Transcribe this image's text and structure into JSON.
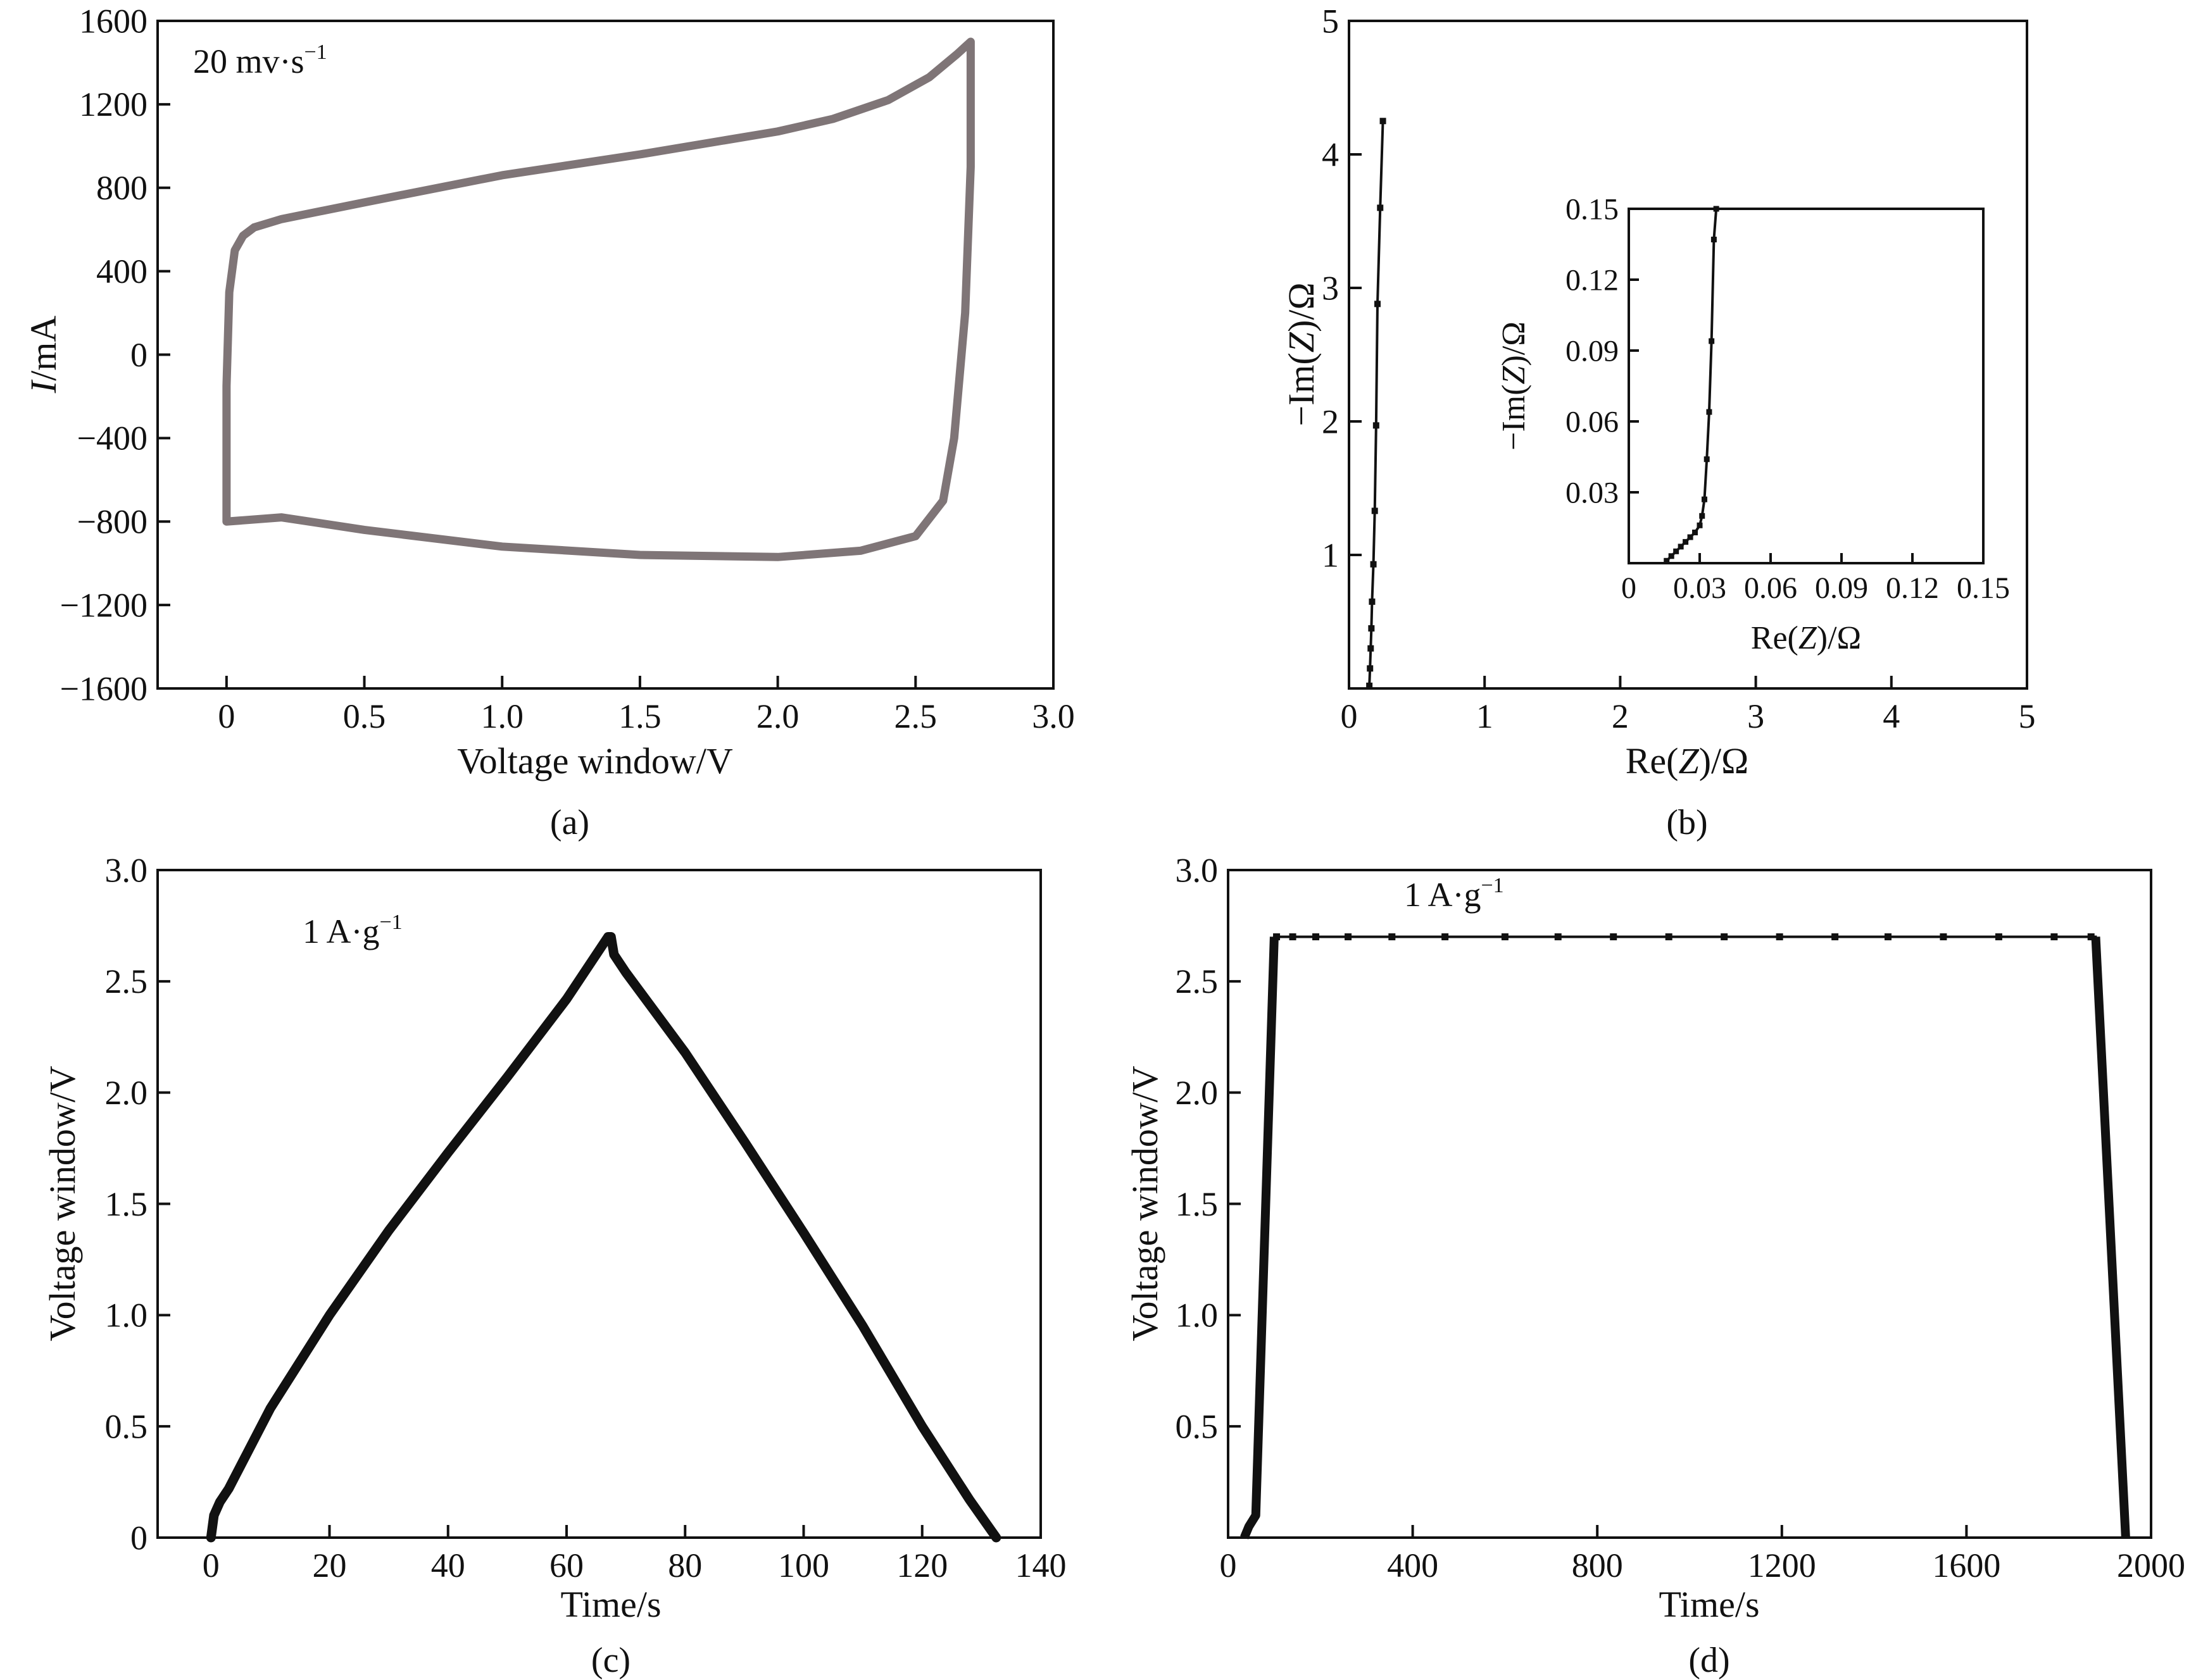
{
  "chart_data": [
    {
      "panel": "(a)",
      "type": "line",
      "annotation": "20 mv·s",
      "annotation_sup": "−1",
      "xlabel": "Voltage window/V",
      "ylabel_italic": "I",
      "ylabel_rest": "/mA",
      "xlim": [
        -0.25,
        3.0
      ],
      "ylim": [
        -1600,
        1600
      ],
      "xticks": [
        {
          "v": 0,
          "t": "0"
        },
        {
          "v": 0.5,
          "t": "0.5"
        },
        {
          "v": 1.0,
          "t": "1.0"
        },
        {
          "v": 1.5,
          "t": "1.5"
        },
        {
          "v": 2.0,
          "t": "2.0"
        },
        {
          "v": 2.5,
          "t": "2.5"
        },
        {
          "v": 3.0,
          "t": "3.0"
        }
      ],
      "yticks": [
        {
          "v": 1600,
          "t": "1600"
        },
        {
          "v": 1200,
          "t": "1200"
        },
        {
          "v": 800,
          "t": "800"
        },
        {
          "v": 400,
          "t": "400"
        },
        {
          "v": 0,
          "t": "0"
        },
        {
          "v": -400,
          "t": "−400"
        },
        {
          "v": -800,
          "t": "−800"
        },
        {
          "v": -1200,
          "t": "−1200"
        },
        {
          "v": -1600,
          "t": "−1600"
        }
      ],
      "series": [
        {
          "x": [
            0.0,
            0.01,
            0.03,
            0.06,
            0.1,
            0.2,
            0.5,
            1.0,
            1.5,
            2.0,
            2.2,
            2.4,
            2.55,
            2.65,
            2.7,
            2.7,
            2.68,
            2.64,
            2.6,
            2.5,
            2.3,
            2.0,
            1.5,
            1.0,
            0.5,
            0.2,
            0.0,
            0.0
          ],
          "y": [
            -150,
            300,
            500,
            570,
            610,
            650,
            730,
            860,
            960,
            1070,
            1130,
            1220,
            1330,
            1440,
            1500,
            900,
            200,
            -400,
            -700,
            -870,
            -940,
            -970,
            -960,
            -920,
            -840,
            -780,
            -800,
            -150
          ]
        }
      ]
    },
    {
      "panel": "(b)",
      "type": "line",
      "xlabel_pre": "Re(",
      "xlabel_z": "Z",
      "xlabel_post": ")/Ω",
      "ylabel_pre": "−Im(",
      "ylabel_z": "Z",
      "ylabel_post": ")/Ω",
      "xlim": [
        0,
        5
      ],
      "ylim": [
        0,
        5
      ],
      "xticks": [
        {
          "v": 0,
          "t": "0"
        },
        {
          "v": 1,
          "t": "1"
        },
        {
          "v": 2,
          "t": "2"
        },
        {
          "v": 3,
          "t": "3"
        },
        {
          "v": 4,
          "t": "4"
        },
        {
          "v": 5,
          "t": "5"
        }
      ],
      "yticks": [
        {
          "v": 1,
          "t": "1"
        },
        {
          "v": 2,
          "t": "2"
        },
        {
          "v": 3,
          "t": "3"
        },
        {
          "v": 4,
          "t": "4"
        },
        {
          "v": 5,
          "t": "5"
        }
      ],
      "series": [
        {
          "x": [
            0.15,
            0.155,
            0.16,
            0.165,
            0.17,
            0.18,
            0.19,
            0.2,
            0.21,
            0.23,
            0.25
          ],
          "y": [
            0.02,
            0.15,
            0.3,
            0.45,
            0.65,
            0.93,
            1.33,
            1.97,
            2.88,
            3.6,
            4.25
          ]
        }
      ],
      "inset": {
        "xlabel_pre": "Re(",
        "xlabel_z": "Z",
        "xlabel_post": ")/Ω",
        "ylabel_pre": "−Im(",
        "ylabel_z": "Z",
        "ylabel_post": ")/Ω",
        "xlim": [
          0,
          0.15
        ],
        "ylim": [
          0,
          0.15
        ],
        "xticks": [
          {
            "v": 0,
            "t": "0"
          },
          {
            "v": 0.03,
            "t": "0.03"
          },
          {
            "v": 0.06,
            "t": "0.06"
          },
          {
            "v": 0.09,
            "t": "0.09"
          },
          {
            "v": 0.12,
            "t": "0.12"
          },
          {
            "v": 0.15,
            "t": "0.15"
          }
        ],
        "yticks": [
          {
            "v": 0.03,
            "t": "0.03"
          },
          {
            "v": 0.06,
            "t": "0.06"
          },
          {
            "v": 0.09,
            "t": "0.09"
          },
          {
            "v": 0.12,
            "t": "0.12"
          },
          {
            "v": 0.15,
            "t": "0.15"
          }
        ],
        "series": [
          {
            "x": [
              0.016,
              0.018,
              0.02,
              0.022,
              0.024,
              0.026,
              0.028,
              0.03,
              0.031,
              0.032,
              0.033,
              0.034,
              0.035,
              0.036,
              0.037
            ],
            "y": [
              0.001,
              0.003,
              0.005,
              0.007,
              0.009,
              0.011,
              0.013,
              0.016,
              0.02,
              0.027,
              0.044,
              0.064,
              0.094,
              0.137,
              0.15
            ]
          }
        ]
      }
    },
    {
      "panel": "(c)",
      "type": "line",
      "annotation": "1 A·g",
      "annotation_sup": "−1",
      "xlabel": "Time/s",
      "ylabel": "Voltage window/V",
      "xlim": [
        -9,
        140
      ],
      "ylim": [
        0,
        3.0
      ],
      "xticks": [
        {
          "v": 0,
          "t": "0"
        },
        {
          "v": 20,
          "t": "20"
        },
        {
          "v": 40,
          "t": "40"
        },
        {
          "v": 60,
          "t": "60"
        },
        {
          "v": 80,
          "t": "80"
        },
        {
          "v": 100,
          "t": "100"
        },
        {
          "v": 120,
          "t": "120"
        },
        {
          "v": 140,
          "t": "140"
        }
      ],
      "yticks": [
        {
          "v": 0,
          "t": "0"
        },
        {
          "v": 0.5,
          "t": "0.5"
        },
        {
          "v": 1.0,
          "t": "1.0"
        },
        {
          "v": 1.5,
          "t": "1.5"
        },
        {
          "v": 2.0,
          "t": "2.0"
        },
        {
          "v": 2.5,
          "t": "2.5"
        },
        {
          "v": 3.0,
          "t": "3.0"
        }
      ],
      "series": [
        {
          "x": [
            0,
            0.5,
            1.5,
            3,
            10,
            20,
            30,
            40,
            50,
            60,
            67,
            67.5,
            68,
            70,
            80,
            90,
            100,
            110,
            120,
            128,
            132.5
          ],
          "y": [
            0,
            0.1,
            0.16,
            0.22,
            0.58,
            1.0,
            1.38,
            1.73,
            2.07,
            2.42,
            2.7,
            2.7,
            2.62,
            2.54,
            2.18,
            1.78,
            1.37,
            0.95,
            0.5,
            0.17,
            0
          ]
        }
      ]
    },
    {
      "panel": "(d)",
      "type": "line",
      "annotation": "1 A·g",
      "annotation_sup": "−1",
      "xlabel": "Time/s",
      "ylabel": "Voltage window/V",
      "xlim": [
        0,
        2000
      ],
      "ylim": [
        0,
        3.0
      ],
      "xticks": [
        {
          "v": 0,
          "t": "0"
        },
        {
          "v": 400,
          "t": "400"
        },
        {
          "v": 800,
          "t": "800"
        },
        {
          "v": 1200,
          "t": "1200"
        },
        {
          "v": 1600,
          "t": "1600"
        },
        {
          "v": 2000,
          "t": "2000"
        }
      ],
      "yticks": [
        {
          "v": 0.5,
          "t": "0.5"
        },
        {
          "v": 1.0,
          "t": "1.0"
        },
        {
          "v": 1.5,
          "t": "1.5"
        },
        {
          "v": 2.0,
          "t": "2.0"
        },
        {
          "v": 2.5,
          "t": "2.5"
        },
        {
          "v": 3.0,
          "t": "3.0"
        }
      ],
      "series": [
        {
          "x": [
            35,
            45,
            60,
            100,
            1880,
            1945
          ],
          "y": [
            0,
            0.05,
            0.1,
            2.7,
            2.7,
            0
          ],
          "plateau_markers": [
            105,
            140,
            190,
            260,
            355,
            470,
            600,
            715,
            835,
            955,
            1075,
            1195,
            1315,
            1430,
            1550,
            1670,
            1790,
            1870
          ]
        }
      ]
    }
  ]
}
